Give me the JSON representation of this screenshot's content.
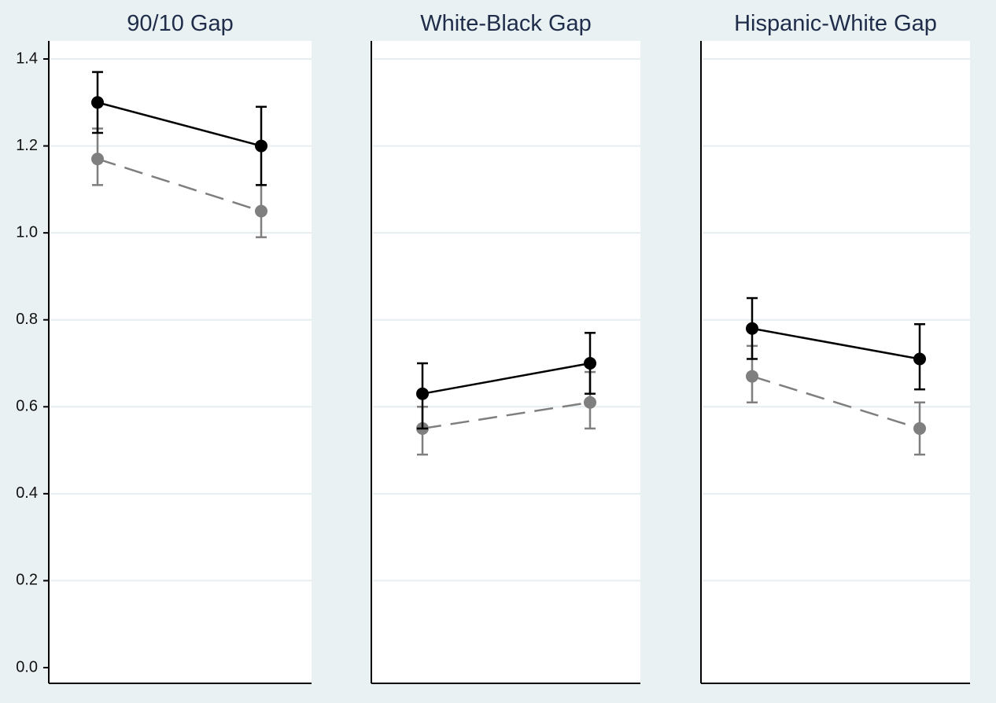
{
  "chart_data": {
    "type": "scatter",
    "ylim": [
      0,
      1.4
    ],
    "yticks": [
      "0.0",
      "0.2",
      "0.4",
      "0.6",
      "0.8",
      "1.0",
      "1.2",
      "1.4"
    ],
    "grid": true,
    "colors": {
      "series_1": "#000000",
      "series_2": "#7f7f7f",
      "grid": "#e6eef1",
      "background": "#eaf1f3",
      "plot_background": "#ffffff"
    },
    "panels": [
      {
        "title": "90/10 Gap",
        "series": [
          {
            "style": "solid",
            "points": [
              {
                "y": 1.3,
                "lo": 1.23,
                "hi": 1.37
              },
              {
                "y": 1.2,
                "lo": 1.11,
                "hi": 1.29
              }
            ]
          },
          {
            "style": "dashed",
            "points": [
              {
                "y": 1.17,
                "lo": 1.11,
                "hi": 1.24
              },
              {
                "y": 1.05,
                "lo": 0.99,
                "hi": 1.11
              }
            ]
          }
        ]
      },
      {
        "title": "White-Black Gap",
        "series": [
          {
            "style": "solid",
            "points": [
              {
                "y": 0.63,
                "lo": 0.55,
                "hi": 0.7
              },
              {
                "y": 0.7,
                "lo": 0.63,
                "hi": 0.77
              }
            ]
          },
          {
            "style": "dashed",
            "points": [
              {
                "y": 0.55,
                "lo": 0.49,
                "hi": 0.6
              },
              {
                "y": 0.61,
                "lo": 0.55,
                "hi": 0.68
              }
            ]
          }
        ]
      },
      {
        "title": "Hispanic-White Gap",
        "series": [
          {
            "style": "solid",
            "points": [
              {
                "y": 0.78,
                "lo": 0.71,
                "hi": 0.85
              },
              {
                "y": 0.71,
                "lo": 0.64,
                "hi": 0.79
              }
            ]
          },
          {
            "style": "dashed",
            "points": [
              {
                "y": 0.67,
                "lo": 0.61,
                "hi": 0.74
              },
              {
                "y": 0.55,
                "lo": 0.49,
                "hi": 0.61
              }
            ]
          }
        ]
      }
    ]
  }
}
